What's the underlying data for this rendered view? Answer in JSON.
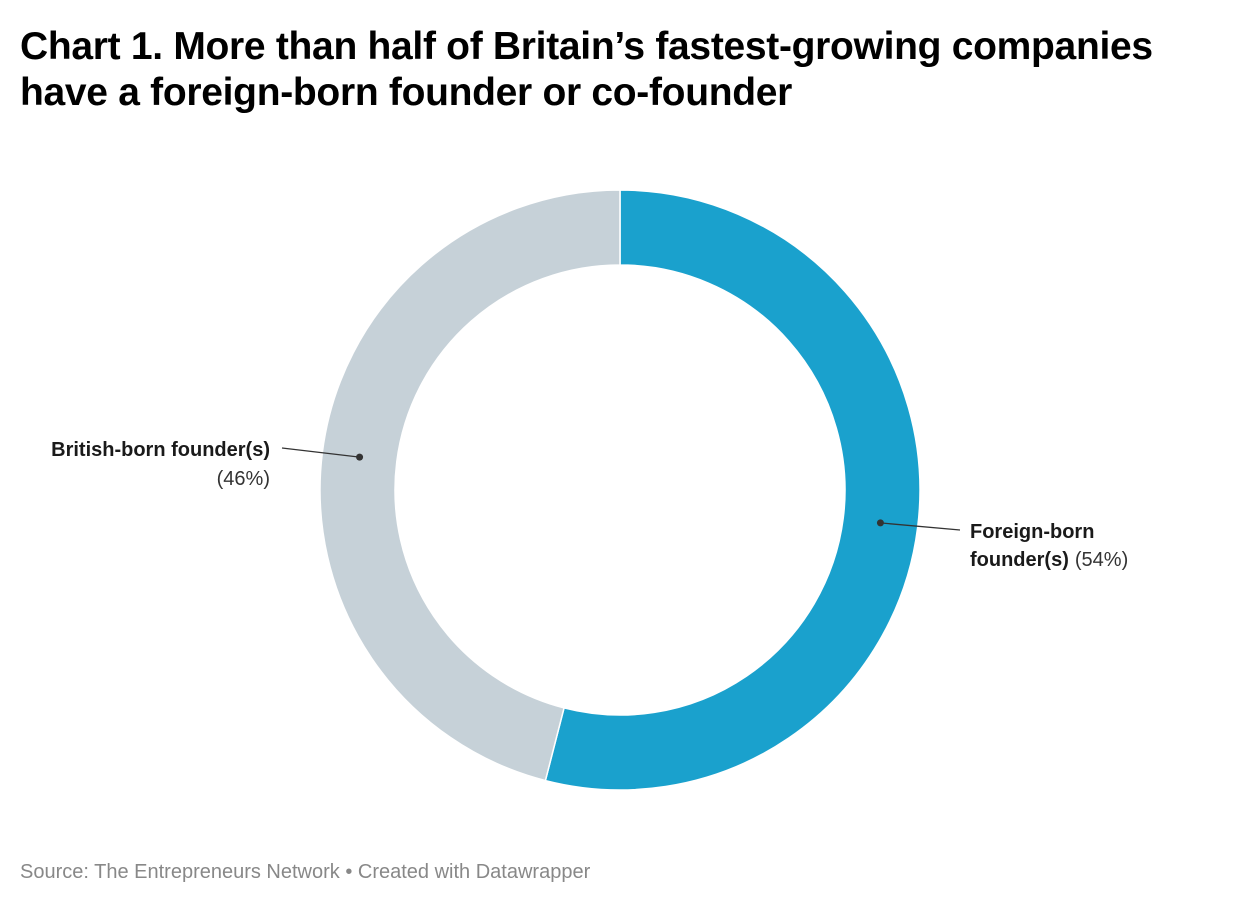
{
  "title": "Chart 1. More than half of Britain’s fastest-growing companies have a foreign-born founder or co-founder",
  "source": "Source: The Entrepreneurs Network • Created with Datawrapper",
  "chart_data": {
    "type": "pie",
    "variant": "donut",
    "title": "Chart 1. More than half of Britain’s fastest-growing companies have a foreign-born founder or co-founder",
    "categories": [
      "Foreign-born founder(s)",
      "British-born founder(s)"
    ],
    "values": [
      54,
      46
    ],
    "unit": "%",
    "colors": [
      "#1aa1cd",
      "#c6d1d8"
    ],
    "labels": [
      {
        "lines": [
          "Foreign-born",
          "founder(s)"
        ],
        "pct": "(54%)"
      },
      {
        "lines": [
          "British-born founder(s)"
        ],
        "pct": "(46%)"
      }
    ]
  }
}
